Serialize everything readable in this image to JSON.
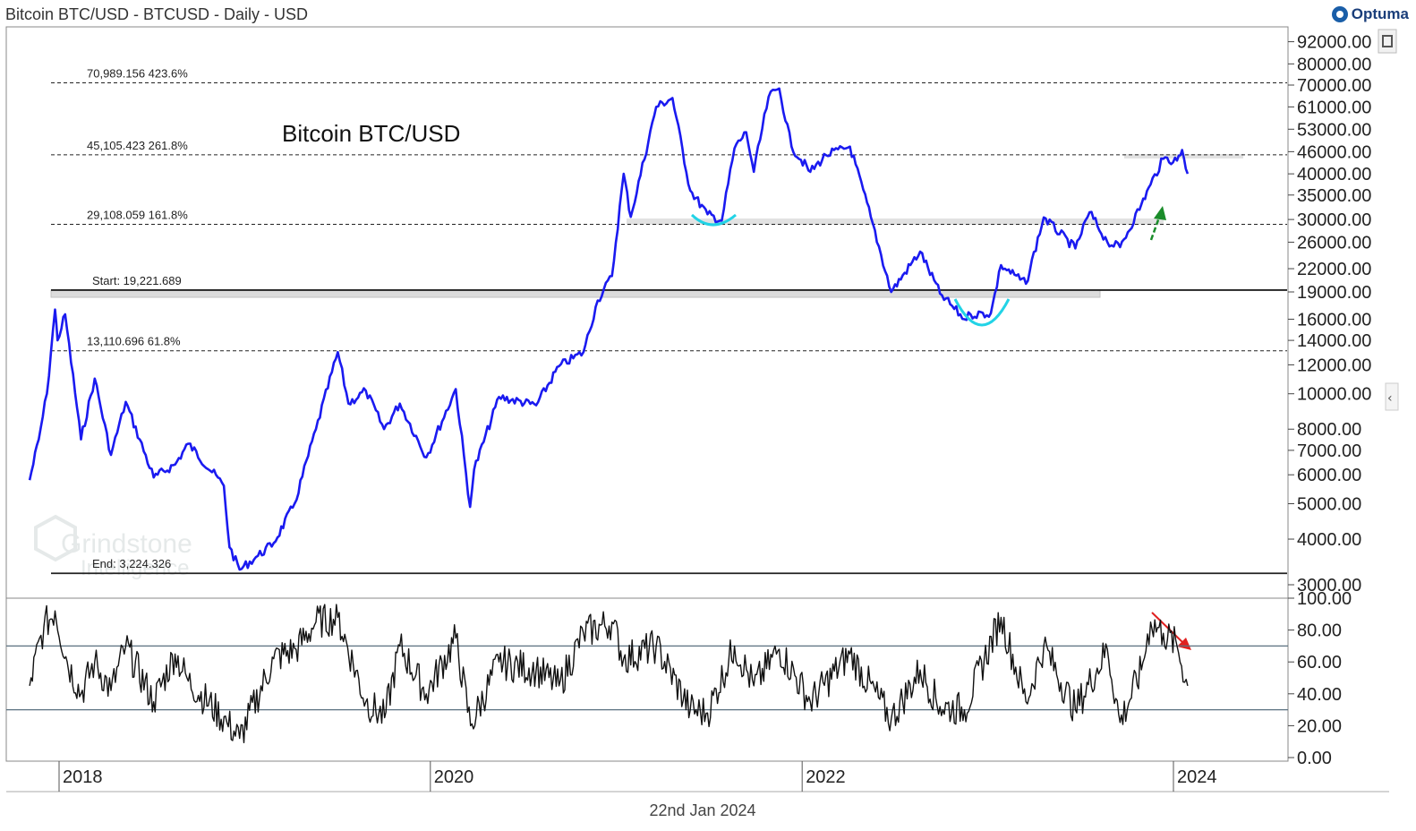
{
  "header": {
    "title": "Bitcoin BTC/USD - BTCUSD - Daily - USD",
    "brand": "Optuma"
  },
  "footer": {
    "date": "22nd Jan 2024"
  },
  "watermark": {
    "line1": "Grindstone",
    "line2": "Intelligence"
  },
  "colors": {
    "price": "#1a1af0",
    "rsi": "#111111",
    "fib": "#333333",
    "band": "#dddddd",
    "arc": "#22d3e6",
    "up_arrow": "#1a8c2a",
    "down_arrow": "#e02020",
    "rsi_levels": "#5a7080"
  },
  "chart_data": [
    {
      "type": "line",
      "title": "Bitcoin BTC/USD",
      "scale": "log",
      "y_ticks": [
        "92000.00",
        "80000.00",
        "70000.00",
        "61000.00",
        "53000.00",
        "46000.00",
        "40000.00",
        "35000.00",
        "30000.00",
        "26000.00",
        "22000.00",
        "19000.00",
        "16000.00",
        "14000.00",
        "12000.00",
        "10000.00",
        "8000.00",
        "7000.00",
        "6000.00",
        "5000.00",
        "4000.00",
        "3000.00"
      ],
      "x_ticks": [
        "2018",
        "2020",
        "2022",
        "2024"
      ],
      "series": [
        {
          "x": [
            "2017-10-28",
            "2017-11-15",
            "2017-12-01",
            "2017-12-17",
            "2017-12-22",
            "2018-01-06",
            "2018-02-06",
            "2018-03-05",
            "2018-04-06",
            "2018-05-05",
            "2018-06-29",
            "2018-08-10",
            "2018-09-05",
            "2018-11-14",
            "2018-11-25",
            "2018-12-15",
            "2019-01-20",
            "2019-02-20",
            "2019-04-02",
            "2019-05-14",
            "2019-06-26",
            "2019-07-17",
            "2019-08-20",
            "2019-09-25",
            "2019-10-26",
            "2019-12-17",
            "2020-02-13",
            "2020-03-12",
            "2020-03-20",
            "2020-05-08",
            "2020-07-20",
            "2020-09-03",
            "2020-10-21",
            "2020-11-18",
            "2020-12-16",
            "2021-01-08",
            "2021-01-22",
            "2021-03-13",
            "2021-04-14",
            "2021-05-19",
            "2021-06-22",
            "2021-07-20",
            "2021-08-14",
            "2021-09-06",
            "2021-09-21",
            "2021-10-20",
            "2021-11-10",
            "2021-12-04",
            "2022-01-10",
            "2022-02-10",
            "2022-03-29",
            "2022-05-09",
            "2022-06-18",
            "2022-08-14",
            "2022-09-22",
            "2022-11-09",
            "2022-11-21",
            "2022-12-31",
            "2023-01-20",
            "2023-03-10",
            "2023-04-14",
            "2023-06-15",
            "2023-07-13",
            "2023-08-17",
            "2023-09-11",
            "2023-10-23",
            "2023-11-10",
            "2023-12-05",
            "2024-01-01",
            "2024-01-11",
            "2024-01-22"
          ],
          "values": [
            5800,
            7500,
            10000,
            17000,
            14000,
            16500,
            7500,
            11000,
            6800,
            9500,
            5900,
            6400,
            7300,
            5600,
            3800,
            3300,
            3600,
            3900,
            5000,
            8000,
            13000,
            9400,
            10200,
            8000,
            9400,
            6700,
            10300,
            4900,
            6200,
            9800,
            9300,
            11900,
            13000,
            18000,
            21000,
            40000,
            30500,
            61000,
            64500,
            36000,
            31000,
            29800,
            47000,
            52000,
            40500,
            65000,
            68500,
            47500,
            40500,
            45000,
            47500,
            30500,
            19000,
            24500,
            18800,
            16000,
            16500,
            16600,
            22500,
            20000,
            30400,
            25000,
            31400,
            26000,
            25200,
            33000,
            37400,
            44000,
            43500,
            46500,
            40000
          ]
        }
      ],
      "fib_levels": [
        {
          "label_value": "70,989.156",
          "label_pct": "423.6%",
          "value": 70989.156
        },
        {
          "label_value": "45,105.423",
          "label_pct": "261.8%",
          "value": 45105.423
        },
        {
          "label_value": "29,108.059",
          "label_pct": "161.8%",
          "value": 29108.059
        },
        {
          "label_value": "19,221.689",
          "label_prefix": "Start:",
          "value": 19221.689
        },
        {
          "label_value": "13,110.696",
          "label_pct": "61.8%",
          "value": 13110.696
        },
        {
          "label_value": "3,224.326",
          "label_prefix": "End:",
          "value": 3224.326
        }
      ]
    },
    {
      "type": "line",
      "ylim": [
        0,
        100
      ],
      "y_ticks": [
        "100.00",
        "80.00",
        "60.00",
        "40.00",
        "20.00",
        "0.00"
      ],
      "levels": [
        70,
        30
      ],
      "series": [
        {
          "x": [
            "2017-10-28",
            "2017-11-25",
            "2017-12-17",
            "2018-01-10",
            "2018-02-06",
            "2018-03-05",
            "2018-04-06",
            "2018-05-05",
            "2018-06-29",
            "2018-08-10",
            "2018-09-05",
            "2018-11-20",
            "2018-12-15",
            "2019-02-20",
            "2019-04-05",
            "2019-05-14",
            "2019-06-26",
            "2019-08-20",
            "2019-09-26",
            "2019-10-26",
            "2019-12-17",
            "2020-02-13",
            "2020-03-13",
            "2020-05-08",
            "2020-07-20",
            "2020-09-03",
            "2020-10-21",
            "2020-12-16",
            "2021-01-08",
            "2021-03-13",
            "2021-05-19",
            "2021-06-22",
            "2021-08-14",
            "2021-09-21",
            "2021-11-10",
            "2022-01-10",
            "2022-03-29",
            "2022-06-18",
            "2022-08-14",
            "2022-09-22",
            "2022-11-09",
            "2023-01-20",
            "2023-03-10",
            "2023-04-14",
            "2023-06-15",
            "2023-08-17",
            "2023-09-11",
            "2023-10-23",
            "2023-11-10",
            "2023-12-05",
            "2024-01-01",
            "2024-01-22"
          ],
          "values": [
            45,
            82,
            92,
            60,
            40,
            60,
            42,
            70,
            35,
            65,
            48,
            22,
            12,
            62,
            68,
            85,
            88,
            35,
            25,
            70,
            40,
            75,
            20,
            60,
            55,
            45,
            78,
            85,
            62,
            70,
            30,
            28,
            70,
            45,
            68,
            35,
            65,
            24,
            55,
            32,
            30,
            88,
            35,
            70,
            30,
            68,
            22,
            55,
            85,
            78,
            70,
            45
          ]
        }
      ]
    }
  ]
}
